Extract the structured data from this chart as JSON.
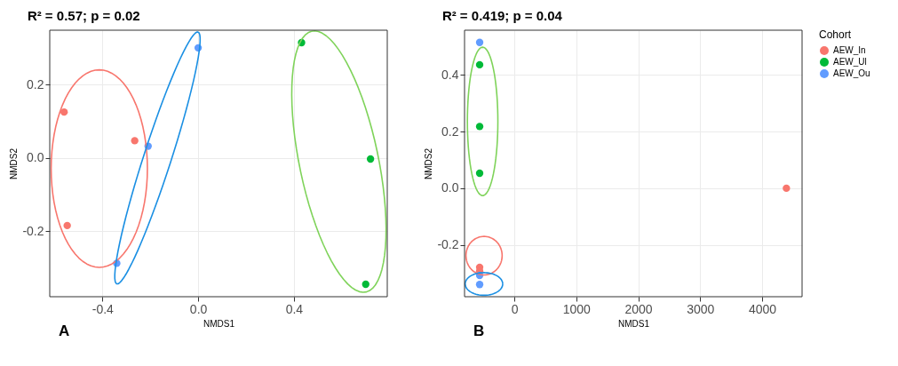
{
  "chart_data": [
    {
      "type": "scatter",
      "title": "R² = 0.57; p = 0.02",
      "annotations": [
        "A"
      ],
      "xlabel": "NMDS1",
      "ylabel": "NMDS2",
      "xlim": [
        -0.62,
        0.79
      ],
      "ylim": [
        -0.378,
        0.348
      ],
      "xticks": [
        -0.4,
        {
          "value": 0,
          "label": "0.0"
        },
        0.4
      ],
      "yticks": [
        -0.2,
        {
          "value": 0,
          "label": "0.0"
        },
        0.2
      ],
      "grid": true,
      "legend": false,
      "marker": "circle",
      "series": [
        {
          "color": "#f8766d",
          "x": [
            -0.56,
            -0.265,
            -0.547
          ],
          "values": [
            0.125,
            0.047,
            -0.184
          ]
        },
        {
          "color": "#00ba38",
          "x": [
            0.432,
            0.72,
            0.7
          ],
          "values": [
            0.314,
            -0.003,
            -0.344
          ]
        },
        {
          "color": "#619cff",
          "x": [
            0.0,
            -0.209,
            -0.34
          ],
          "values": [
            0.3,
            0.032,
            -0.287
          ]
        }
      ]
    },
    {
      "type": "scatter",
      "title": "R² = 0.419; p = 0.04",
      "annotations": [
        "B"
      ],
      "xlabel": "NMDS1",
      "ylabel": "NMDS2",
      "xlim": [
        -804,
        4644
      ],
      "ylim": [
        -0.383,
        0.558
      ],
      "xticks": [
        0,
        1000,
        2000,
        3000,
        4000
      ],
      "yticks": [
        -0.2,
        {
          "value": 0,
          "label": "0.0"
        },
        0.2,
        0.4
      ],
      "grid": true,
      "legend": "right",
      "legend_title": "Cohort",
      "marker": "circle",
      "series": [
        {
          "name": "AEW_In",
          "color": "#f8766d",
          "x": [
            -560,
            -560,
            4391
          ],
          "values": [
            -0.279,
            -0.293,
            0.0
          ]
        },
        {
          "name": "AEW_Ul",
          "color": "#00ba38",
          "x": [
            -560,
            -560,
            -560
          ],
          "values": [
            0.436,
            0.218,
            0.053
          ]
        },
        {
          "name": "AEW_Ou",
          "color": "#619cff",
          "x": [
            -560,
            -560,
            -560
          ],
          "values": [
            0.515,
            -0.308,
            -0.34
          ]
        }
      ]
    }
  ]
}
